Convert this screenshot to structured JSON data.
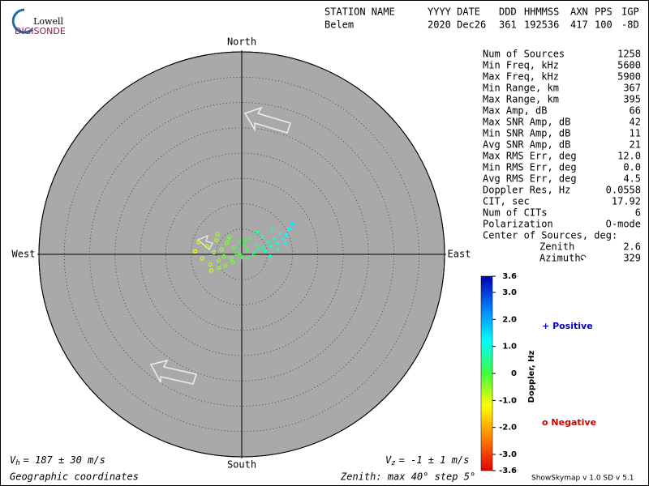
{
  "header": {
    "logo_top": "Lowell",
    "logo_bottom": "DIGISONDE",
    "columns": [
      {
        "label": "STATION NAME",
        "value": "Belem"
      },
      {
        "label": "YYYY DATE",
        "value": "2020 Dec26"
      },
      {
        "label": "DDD",
        "value": "361"
      },
      {
        "label": "HHMMSS",
        "value": "192536"
      },
      {
        "label": "AXN",
        "value": "417"
      },
      {
        "label": "PPS",
        "value": "100"
      },
      {
        "label": "IGP",
        "value": "-8D"
      }
    ]
  },
  "stats": [
    {
      "label": "Num of Sources",
      "value": 1258
    },
    {
      "label": "Min Freq, kHz",
      "value": 5600
    },
    {
      "label": "Max Freq, kHz",
      "value": 5900
    },
    {
      "label": "Min Range, km",
      "value": 367
    },
    {
      "label": "Max Range, km",
      "value": 395
    },
    {
      "label": "Max Amp, dB",
      "value": 66
    },
    {
      "label": "Max SNR Amp, dB",
      "value": 42
    },
    {
      "label": "Min SNR Amp, dB",
      "value": 11
    },
    {
      "label": "Avg SNR Amp, dB",
      "value": 21
    },
    {
      "label": "Max RMS Err, deg",
      "value": "12.0"
    },
    {
      "label": "Min RMS Err, deg",
      "value": "0.0"
    },
    {
      "label": "Avg RMS Err, deg",
      "value": 4.5
    },
    {
      "label": "Doppler Res, Hz",
      "value": 0.0558
    },
    {
      "label": "CIT, sec",
      "value": 17.92
    },
    {
      "label": "Num of CITs",
      "value": 6
    },
    {
      "label": "Polarization",
      "value": "O-mode"
    }
  ],
  "center": {
    "label": "Center of Sources, deg:",
    "zenith_label": "Zenith",
    "zenith": 2.6,
    "azimuth_label": "Azimuth",
    "azimuth": 329
  },
  "compass": {
    "north": "North",
    "south": "South",
    "east": "East",
    "west": "West"
  },
  "zenith": {
    "text": "Zenith: max 40°  step 5°",
    "max": 40,
    "step": 5
  },
  "skymap": {
    "east": [
      -9.2,
      -8.5,
      -7.8,
      -6.9,
      -6.2,
      -5.5,
      -5.0,
      -4.6,
      -4.0,
      -3.5,
      -3.0,
      -2.6,
      -2.0,
      -1.5,
      -1.0,
      -0.5,
      0,
      0.5,
      1.0,
      1.6,
      2.2,
      2.8,
      3.4,
      4.0,
      4.6,
      5.2,
      5.8,
      6.4,
      7.0,
      7.6,
      8.2,
      8.8,
      9.4,
      10.0,
      -6.0,
      -4.5,
      -3.2,
      -1.8,
      -0.3,
      1.2,
      2.6,
      4.2,
      5.6,
      7.2,
      8.6,
      -4.8,
      -2.4,
      0.8,
      3.0,
      6.0
    ],
    "north": [
      0.6,
      2.4,
      -0.8,
      1.6,
      -2.0,
      0.4,
      2.8,
      -1.2,
      1.0,
      -0.4,
      2.2,
      3.0,
      -0.8,
      1.4,
      0.2,
      2.6,
      -0.6,
      1.8,
      0.8,
      3.2,
      -0.2,
      2.0,
      1.2,
      3.6,
      0.6,
      2.4,
      1.6,
      3.0,
      2.2,
      4.2,
      3.0,
      3.8,
      5.0,
      6.0,
      -3.2,
      -2.6,
      -2.2,
      -1.6,
      0.0,
      -0.8,
      0.4,
      1.4,
      -0.4,
      1.0,
      2.2,
      4.0,
      3.4,
      2.9,
      4.4,
      5.0
    ],
    "doppler": [
      -1.2,
      -1.0,
      -0.9,
      -0.8,
      -0.8,
      -0.7,
      -0.6,
      -0.6,
      -0.5,
      -0.4,
      -0.4,
      -0.3,
      -0.3,
      -0.2,
      -0.1,
      -0.1,
      0.0,
      0.1,
      0.1,
      0.2,
      0.3,
      0.4,
      0.5,
      0.6,
      0.6,
      0.7,
      0.8,
      0.9,
      1.0,
      1.0,
      1.1,
      1.2,
      1.2,
      1.3,
      -0.8,
      -0.6,
      -0.4,
      -0.3,
      0.0,
      0.2,
      0.4,
      0.6,
      0.8,
      1.0,
      1.1,
      -0.6,
      -0.3,
      0.1,
      0.5,
      0.9
    ]
  },
  "colorbar": {
    "title": "Doppler, Hz",
    "lim": [
      -3.6,
      3.6
    ],
    "colors": [
      "#e00000",
      "#ff8000",
      "#ffff00",
      "#40ff40",
      "#00ffff",
      "#0080ff",
      "#0000b0"
    ],
    "ticks": [
      3.6,
      {
        "value": 3,
        "label": "3.0"
      },
      {
        "value": 2,
        "label": "2.0"
      },
      {
        "value": 1,
        "label": "1.0"
      },
      0,
      {
        "value": -1,
        "label": "-1.0"
      },
      {
        "value": -2,
        "label": "-2.0"
      },
      {
        "value": -3,
        "label": "-3.0"
      },
      -3.6
    ]
  },
  "legend": {
    "positive_symbol": "+",
    "positive": "Positive",
    "negative_symbol": "o",
    "negative": "Negative"
  },
  "footer": {
    "vh": {
      "symbol": "V",
      "sub": "h",
      "text": "= 187 ± 30 m/s"
    },
    "vz": {
      "symbol": "V",
      "sub": "z",
      "text": "= -1 ± 1 m/s"
    },
    "coords": "Geographic coordinates",
    "version": "ShowSkymap v 1.0  SD v 5.1"
  }
}
